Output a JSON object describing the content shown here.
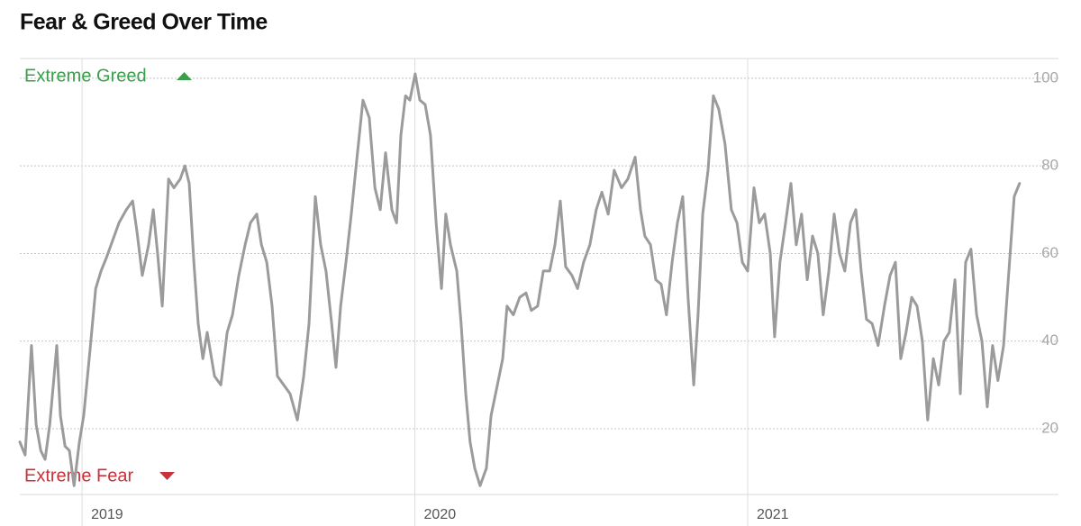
{
  "chart_data": {
    "type": "line",
    "title": "Fear & Greed Over Time",
    "annotations": [
      {
        "text": "Extreme Greed",
        "color": "#3a9e4b"
      },
      {
        "text": "Extreme Fear",
        "color": "#c8323a"
      }
    ],
    "color": "#9b9b9b",
    "grid": true,
    "xlim": [
      2018.813,
      2021.934
    ],
    "xticks": [
      2019,
      2020,
      2021
    ],
    "ylim": [
      5,
      104.5
    ],
    "yticks": [
      20,
      40,
      60,
      80,
      100
    ],
    "x": [
      2018.813,
      2018.829,
      2018.848,
      2018.862,
      2018.876,
      2018.889,
      2018.903,
      2018.916,
      2018.924,
      2018.935,
      2018.949,
      2018.962,
      2018.976,
      2018.992,
      2019.005,
      2019.024,
      2019.041,
      2019.057,
      2019.073,
      2019.092,
      2019.111,
      2019.133,
      2019.152,
      2019.165,
      2019.181,
      2019.2,
      2019.214,
      2019.227,
      2019.241,
      2019.26,
      2019.276,
      2019.295,
      2019.309,
      2019.322,
      2019.336,
      2019.349,
      2019.363,
      2019.376,
      2019.398,
      2019.417,
      2019.436,
      2019.452,
      2019.471,
      2019.49,
      2019.506,
      2019.525,
      2019.539,
      2019.555,
      2019.571,
      2019.587,
      2019.606,
      2019.625,
      2019.647,
      2019.666,
      2019.682,
      2019.701,
      2019.717,
      2019.733,
      2019.75,
      2019.763,
      2019.777,
      2019.793,
      2019.809,
      2019.825,
      2019.844,
      2019.863,
      2019.88,
      2019.896,
      2019.912,
      2019.931,
      2019.945,
      2019.958,
      2019.972,
      2019.985,
      2020.001,
      2020.015,
      2020.031,
      2020.047,
      2020.064,
      2020.08,
      2020.093,
      2020.107,
      2020.126,
      2020.139,
      2020.153,
      2020.166,
      2020.18,
      2020.196,
      2020.215,
      2020.229,
      2020.248,
      2020.264,
      2020.277,
      2020.296,
      2020.315,
      2020.334,
      2020.35,
      2020.369,
      2020.386,
      2020.405,
      2020.421,
      2020.437,
      2020.453,
      2020.472,
      2020.489,
      2020.507,
      2020.526,
      2020.545,
      2020.562,
      2020.581,
      2020.599,
      2020.621,
      2020.64,
      2020.662,
      2020.678,
      2020.691,
      2020.708,
      2020.724,
      2020.74,
      2020.756,
      2020.773,
      2020.789,
      2020.805,
      2020.821,
      2020.838,
      2020.851,
      2020.865,
      2020.881,
      2020.897,
      2020.913,
      2020.932,
      2020.951,
      2020.968,
      2020.984,
      2021.0,
      2021.019,
      2021.035,
      2021.051,
      2021.068,
      2021.081,
      2021.097,
      2021.114,
      2021.13,
      2021.146,
      2021.162,
      2021.179,
      2021.195,
      2021.211,
      2021.227,
      2021.244,
      2021.26,
      2021.276,
      2021.292,
      2021.309,
      2021.325,
      2021.341,
      2021.357,
      2021.374,
      2021.392,
      2021.411,
      2021.428,
      2021.444,
      2021.46,
      2021.476,
      2021.493,
      2021.509,
      2021.525,
      2021.541,
      2021.558,
      2021.574,
      2021.59,
      2021.606,
      2021.623,
      2021.639,
      2021.655,
      2021.671,
      2021.688,
      2021.704,
      2021.72,
      2021.736,
      2021.752,
      2021.769,
      2021.785,
      2021.801,
      2021.817
    ],
    "values": [
      17,
      14,
      39,
      21,
      15,
      13,
      21,
      32,
      39,
      23,
      16,
      15,
      7,
      17,
      23,
      38,
      52,
      56,
      59,
      63,
      67,
      70,
      72,
      65,
      55,
      62,
      70,
      60,
      48,
      77,
      75,
      77,
      80,
      76,
      58,
      44,
      36,
      42,
      32,
      30,
      42,
      46,
      55,
      62,
      67,
      69,
      62,
      58,
      48,
      32,
      30,
      28,
      22,
      32,
      44,
      73,
      62,
      56,
      44,
      34,
      48,
      58,
      69,
      81,
      95,
      91,
      75,
      70,
      83,
      70,
      67,
      87,
      96,
      95,
      101,
      95,
      94,
      87,
      67,
      52,
      69,
      62,
      56,
      44,
      28,
      17,
      11,
      7,
      11,
      23,
      30,
      36,
      48,
      46,
      50,
      51,
      47,
      48,
      56,
      56,
      62,
      72,
      57,
      55,
      52,
      58,
      62,
      70,
      74,
      69,
      79,
      75,
      77,
      82,
      70,
      64,
      62,
      54,
      53,
      46,
      58,
      67,
      73,
      50,
      30,
      46,
      69,
      79,
      96,
      93,
      85,
      70,
      67,
      58,
      56,
      75,
      67,
      69,
      60,
      41,
      58,
      67,
      76,
      62,
      69,
      54,
      64,
      60,
      46,
      56,
      69,
      60,
      56,
      67,
      70,
      56,
      45,
      44,
      39,
      48,
      55,
      58,
      36,
      42,
      50,
      48,
      40,
      22,
      36,
      30,
      40,
      42,
      54,
      28,
      58,
      61,
      46,
      40,
      25,
      39,
      31,
      39,
      56,
      73,
      76
    ]
  }
}
